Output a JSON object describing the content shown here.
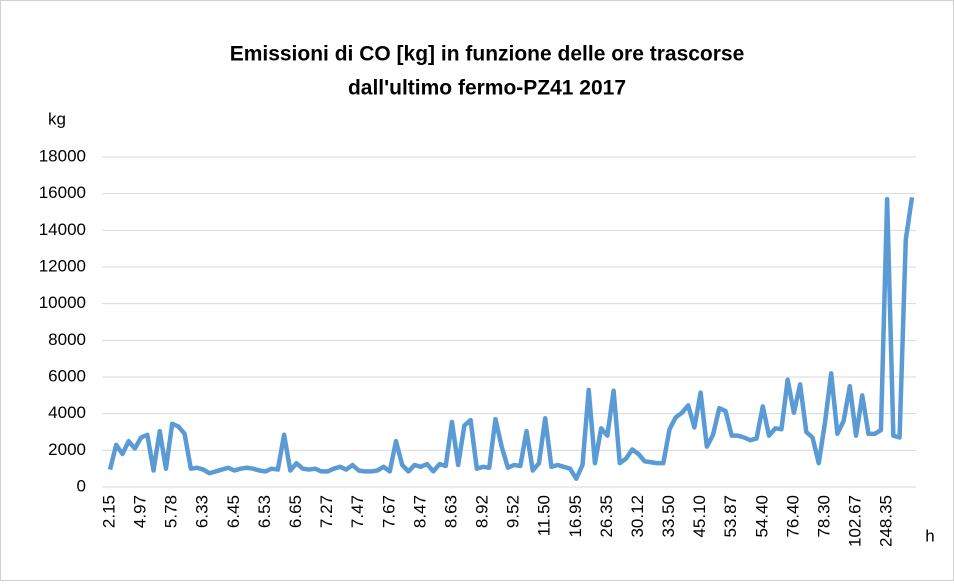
{
  "chart_data": {
    "type": "line",
    "title": [
      "Emissioni di CO [kg] in funzione delle ore trascorse",
      "dall'ultimo fermo-PZ41 2017"
    ],
    "y_label": "kg",
    "x_label": "h",
    "categories": [
      "2.15",
      null,
      null,
      null,
      null,
      "4.97",
      null,
      null,
      null,
      null,
      "5.78",
      null,
      null,
      null,
      null,
      "6.33",
      null,
      null,
      null,
      null,
      "6.45",
      null,
      null,
      null,
      null,
      "6.53",
      null,
      null,
      null,
      null,
      "6.65",
      null,
      null,
      null,
      null,
      "7.27",
      null,
      null,
      null,
      null,
      "7.47",
      null,
      null,
      null,
      null,
      "7.67",
      null,
      null,
      null,
      null,
      "8.47",
      null,
      null,
      null,
      null,
      "8.63",
      null,
      null,
      null,
      null,
      "8.92",
      null,
      null,
      null,
      null,
      "9.52",
      null,
      null,
      null,
      null,
      "11.50",
      null,
      null,
      null,
      null,
      "16.95",
      null,
      null,
      null,
      null,
      "26.35",
      null,
      null,
      null,
      null,
      "30.12",
      null,
      null,
      null,
      null,
      "33.50",
      null,
      null,
      null,
      null,
      "45.10",
      null,
      null,
      null,
      null,
      "53.87",
      null,
      null,
      null,
      null,
      "54.40",
      null,
      null,
      null,
      null,
      "76.40",
      null,
      null,
      null,
      null,
      "78.30",
      null,
      null,
      null,
      null,
      "102.67",
      null,
      null,
      null,
      null,
      "248.35",
      null,
      null,
      null,
      null
    ],
    "series": [
      {
        "name": "CO",
        "color": "#5b9bd5",
        "values": [
          950,
          2300,
          1800,
          2500,
          2100,
          2700,
          2850,
          900,
          3050,
          1000,
          3450,
          3300,
          2900,
          1000,
          1050,
          950,
          750,
          850,
          950,
          1050,
          900,
          1000,
          1050,
          1000,
          900,
          850,
          1000,
          950,
          2850,
          900,
          1300,
          1000,
          950,
          1000,
          850,
          850,
          1000,
          1100,
          950,
          1200,
          900,
          850,
          850,
          900,
          1100,
          850,
          2500,
          1200,
          850,
          1200,
          1100,
          1250,
          850,
          1250,
          1150,
          3550,
          1200,
          3350,
          3650,
          1000,
          1100,
          1050,
          3700,
          2200,
          1050,
          1200,
          1150,
          3050,
          900,
          1300,
          3750,
          1100,
          1200,
          1100,
          1000,
          450,
          1200,
          5300,
          1300,
          3200,
          2800,
          5250,
          1300,
          1550,
          2050,
          1800,
          1400,
          1350,
          1300,
          1300,
          3150,
          3800,
          4050,
          4450,
          3250,
          5150,
          2200,
          2850,
          4300,
          4150,
          2800,
          2800,
          2700,
          2550,
          2650,
          4400,
          2800,
          3200,
          3150,
          5850,
          4050,
          5600,
          3000,
          2700,
          1300,
          3500,
          6200,
          2900,
          3600,
          5500,
          2800,
          5000,
          2900,
          2900,
          3100,
          15700,
          2800,
          2700,
          13500,
          15800
        ]
      }
    ],
    "ylim": [
      0,
      18000
    ],
    "yticks": [
      0,
      2000,
      4000,
      6000,
      8000,
      10000,
      12000,
      14000,
      16000,
      18000
    ],
    "grid": true
  }
}
